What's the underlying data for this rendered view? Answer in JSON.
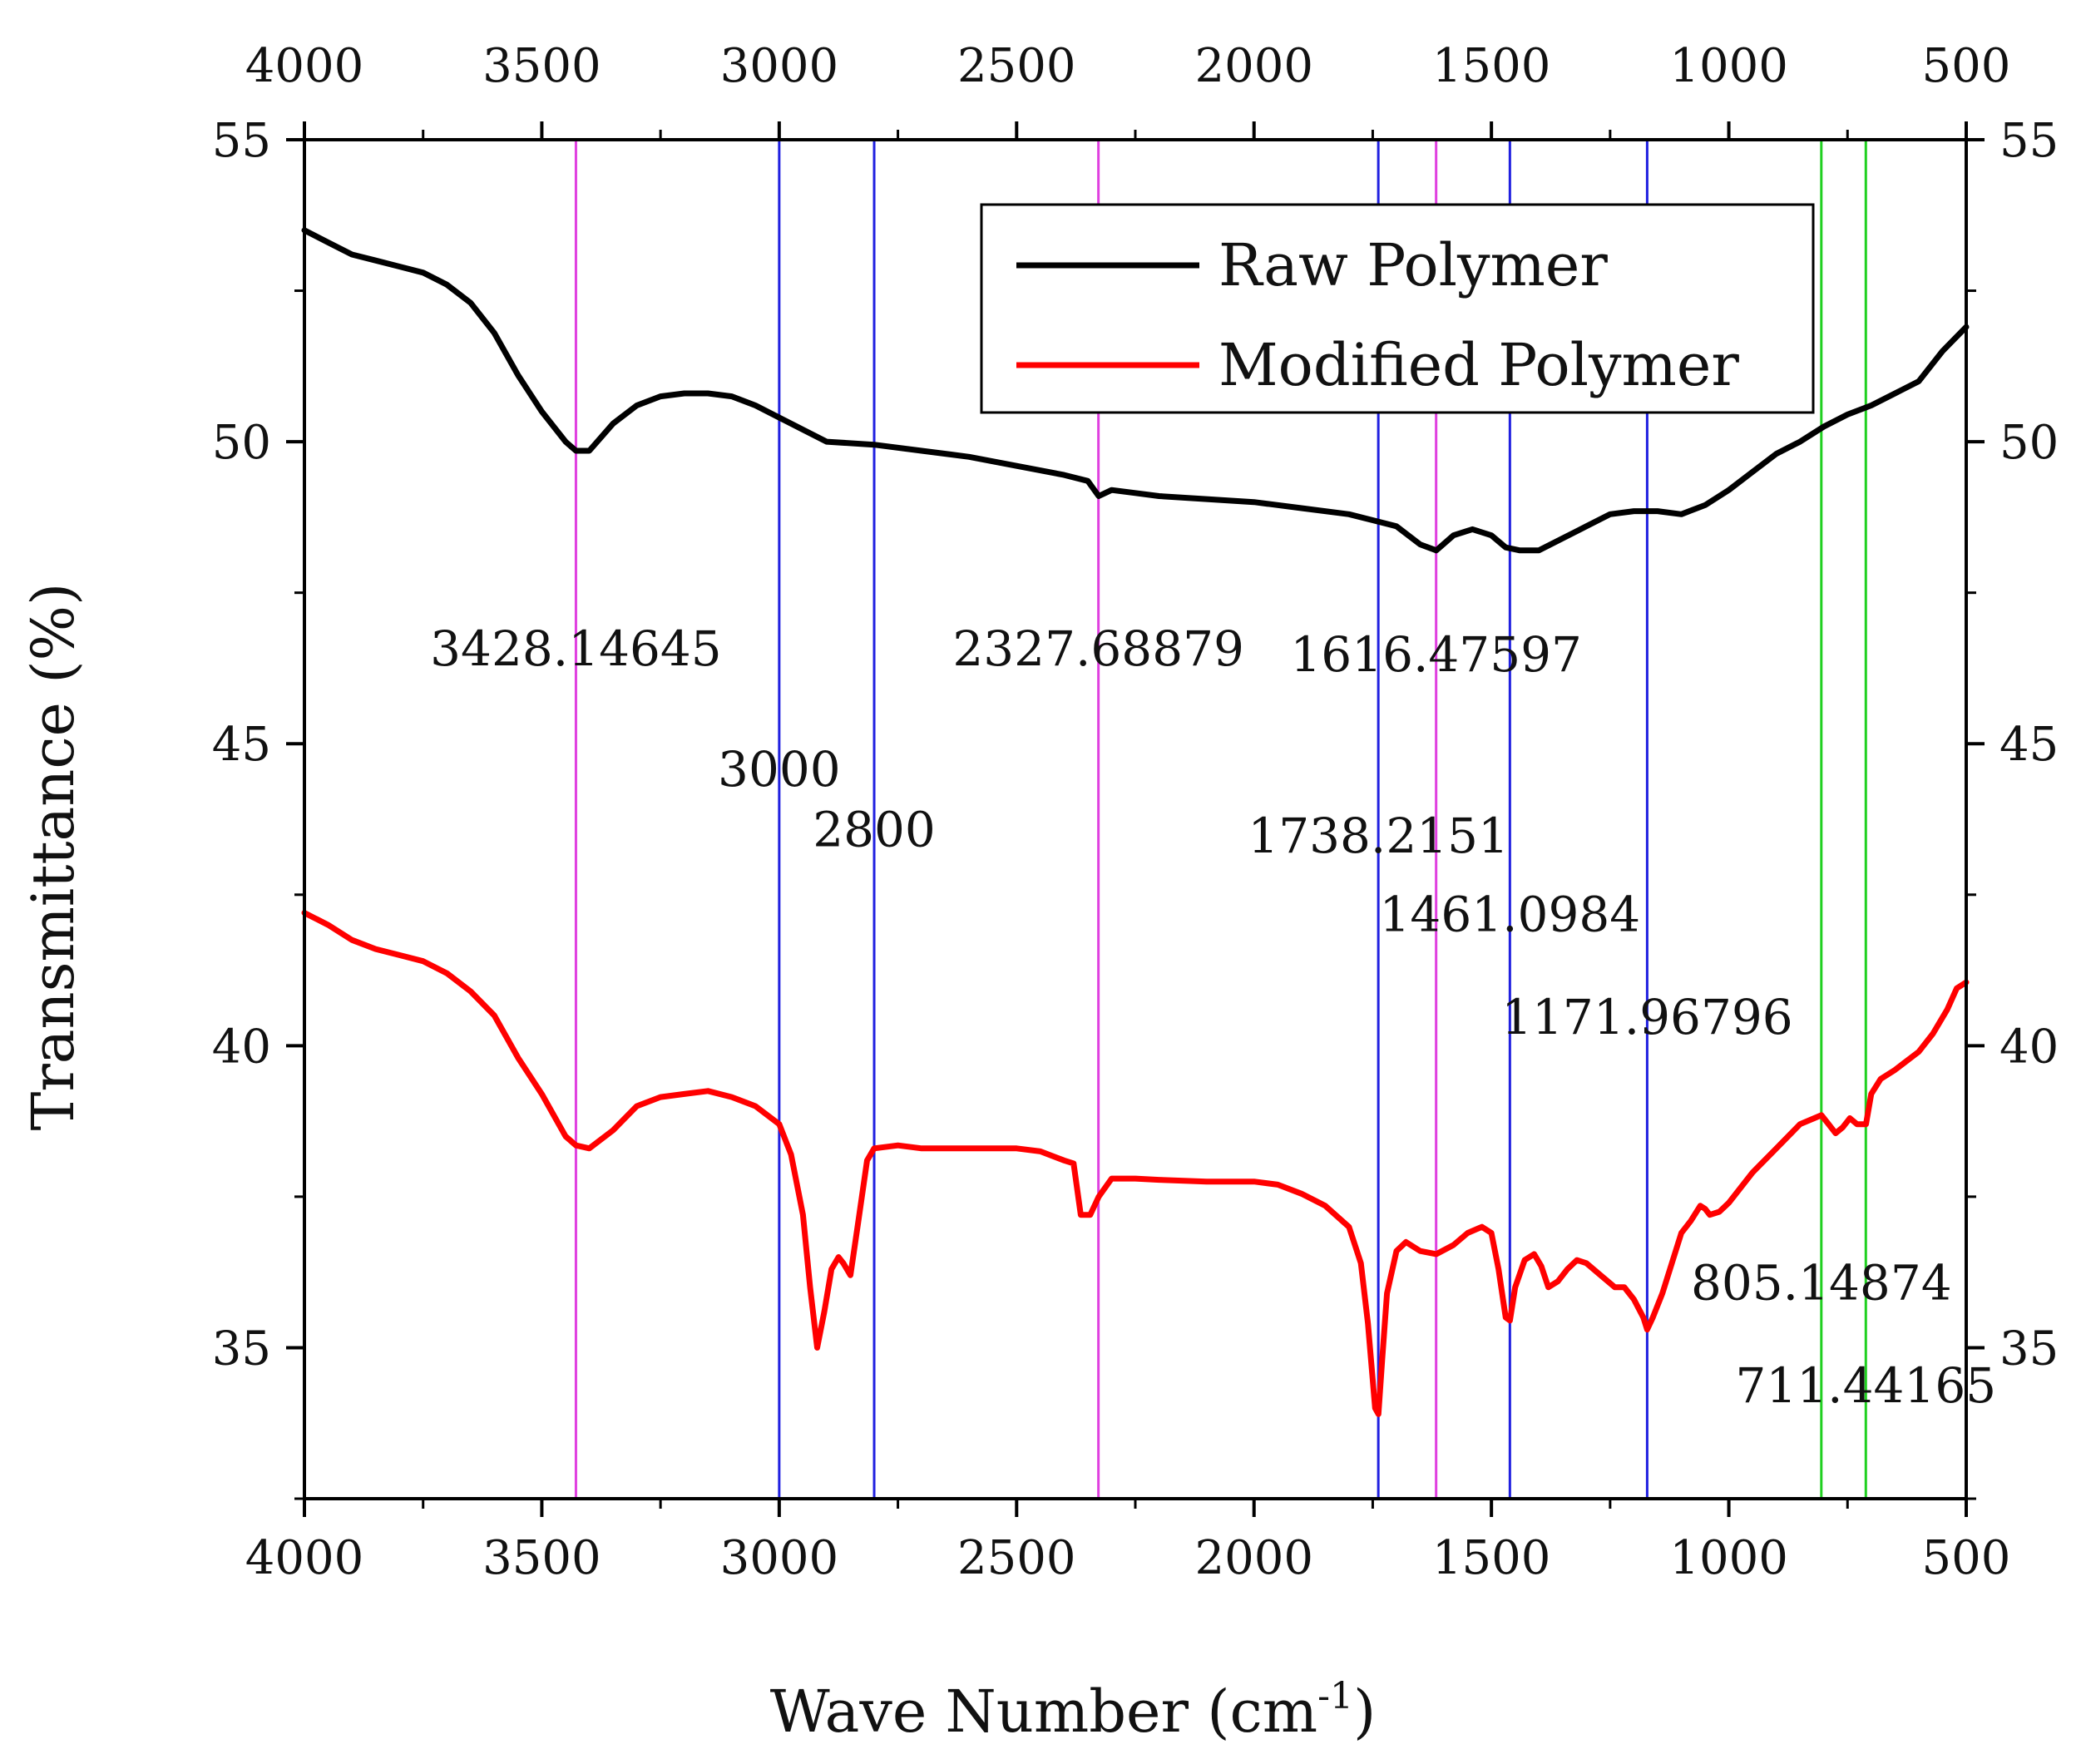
{
  "chart_data": {
    "type": "line",
    "xlabel_main": "Wave Number (cm",
    "xlabel_sup": "-1",
    "xlabel_close": ")",
    "ylabel": "Transmittance (%)",
    "xlim": [
      4000,
      500
    ],
    "ylim": [
      32.5,
      55
    ],
    "x_ticks": [
      4000,
      3500,
      3000,
      2500,
      2000,
      1500,
      1000,
      500
    ],
    "x_tick_labels": [
      "4000",
      "3500",
      "3000",
      "2500",
      "2000",
      "1500",
      "1000",
      "500"
    ],
    "y_ticks": [
      35,
      40,
      45,
      50,
      55
    ],
    "y_tick_labels": [
      "35",
      "40",
      "45",
      "50",
      "55"
    ],
    "series": [
      {
        "name": "Raw Polymer",
        "color": "#000000",
        "points": [
          [
            4000,
            53.5
          ],
          [
            3950,
            53.3
          ],
          [
            3900,
            53.1
          ],
          [
            3850,
            53.0
          ],
          [
            3800,
            52.9
          ],
          [
            3750,
            52.8
          ],
          [
            3700,
            52.6
          ],
          [
            3650,
            52.3
          ],
          [
            3600,
            51.8
          ],
          [
            3550,
            51.1
          ],
          [
            3500,
            50.5
          ],
          [
            3450,
            50.0
          ],
          [
            3428,
            49.85
          ],
          [
            3400,
            49.85
          ],
          [
            3350,
            50.3
          ],
          [
            3300,
            50.6
          ],
          [
            3250,
            50.75
          ],
          [
            3200,
            50.8
          ],
          [
            3150,
            50.8
          ],
          [
            3100,
            50.75
          ],
          [
            3050,
            50.6
          ],
          [
            3000,
            50.4
          ],
          [
            2950,
            50.2
          ],
          [
            2900,
            50.0
          ],
          [
            2800,
            49.95
          ],
          [
            2700,
            49.85
          ],
          [
            2600,
            49.75
          ],
          [
            2500,
            49.6
          ],
          [
            2400,
            49.45
          ],
          [
            2350,
            49.35
          ],
          [
            2327,
            49.1
          ],
          [
            2300,
            49.2
          ],
          [
            2250,
            49.15
          ],
          [
            2200,
            49.1
          ],
          [
            2100,
            49.05
          ],
          [
            2000,
            49.0
          ],
          [
            1900,
            48.9
          ],
          [
            1800,
            48.8
          ],
          [
            1750,
            48.7
          ],
          [
            1700,
            48.6
          ],
          [
            1650,
            48.3
          ],
          [
            1616,
            48.2
          ],
          [
            1580,
            48.45
          ],
          [
            1540,
            48.55
          ],
          [
            1500,
            48.45
          ],
          [
            1470,
            48.25
          ],
          [
            1440,
            48.2
          ],
          [
            1400,
            48.2
          ],
          [
            1350,
            48.4
          ],
          [
            1300,
            48.6
          ],
          [
            1250,
            48.8
          ],
          [
            1200,
            48.85
          ],
          [
            1150,
            48.85
          ],
          [
            1100,
            48.8
          ],
          [
            1050,
            48.95
          ],
          [
            1000,
            49.2
          ],
          [
            950,
            49.5
          ],
          [
            900,
            49.8
          ],
          [
            850,
            50.0
          ],
          [
            800,
            50.25
          ],
          [
            750,
            50.45
          ],
          [
            700,
            50.6
          ],
          [
            650,
            50.8
          ],
          [
            600,
            51.0
          ],
          [
            550,
            51.5
          ],
          [
            500,
            51.9
          ]
        ]
      },
      {
        "name": "Modified Polymer",
        "color": "#ff0000",
        "points": [
          [
            4000,
            42.2
          ],
          [
            3950,
            42.0
          ],
          [
            3900,
            41.75
          ],
          [
            3850,
            41.6
          ],
          [
            3800,
            41.5
          ],
          [
            3750,
            41.4
          ],
          [
            3700,
            41.2
          ],
          [
            3650,
            40.9
          ],
          [
            3600,
            40.5
          ],
          [
            3550,
            39.8
          ],
          [
            3500,
            39.2
          ],
          [
            3450,
            38.5
          ],
          [
            3428,
            38.35
          ],
          [
            3400,
            38.3
          ],
          [
            3350,
            38.6
          ],
          [
            3300,
            39.0
          ],
          [
            3250,
            39.15
          ],
          [
            3200,
            39.2
          ],
          [
            3150,
            39.25
          ],
          [
            3100,
            39.15
          ],
          [
            3050,
            39.0
          ],
          [
            3000,
            38.7
          ],
          [
            2975,
            38.2
          ],
          [
            2950,
            37.2
          ],
          [
            2935,
            36.0
          ],
          [
            2920,
            35.0
          ],
          [
            2905,
            35.6
          ],
          [
            2890,
            36.3
          ],
          [
            2875,
            36.5
          ],
          [
            2865,
            36.4
          ],
          [
            2850,
            36.2
          ],
          [
            2835,
            37.0
          ],
          [
            2815,
            38.1
          ],
          [
            2800,
            38.3
          ],
          [
            2750,
            38.35
          ],
          [
            2700,
            38.3
          ],
          [
            2600,
            38.3
          ],
          [
            2500,
            38.3
          ],
          [
            2450,
            38.25
          ],
          [
            2400,
            38.1
          ],
          [
            2380,
            38.05
          ],
          [
            2365,
            37.2
          ],
          [
            2345,
            37.2
          ],
          [
            2327,
            37.5
          ],
          [
            2300,
            37.8
          ],
          [
            2250,
            37.8
          ],
          [
            2200,
            37.78
          ],
          [
            2100,
            37.75
          ],
          [
            2000,
            37.75
          ],
          [
            1950,
            37.7
          ],
          [
            1900,
            37.55
          ],
          [
            1850,
            37.35
          ],
          [
            1800,
            37.0
          ],
          [
            1775,
            36.4
          ],
          [
            1760,
            35.4
          ],
          [
            1745,
            34.0
          ],
          [
            1738,
            33.9
          ],
          [
            1730,
            34.8
          ],
          [
            1720,
            35.9
          ],
          [
            1700,
            36.6
          ],
          [
            1680,
            36.75
          ],
          [
            1650,
            36.6
          ],
          [
            1616,
            36.55
          ],
          [
            1580,
            36.7
          ],
          [
            1550,
            36.9
          ],
          [
            1520,
            37.0
          ],
          [
            1500,
            36.9
          ],
          [
            1485,
            36.3
          ],
          [
            1470,
            35.5
          ],
          [
            1461,
            35.45
          ],
          [
            1450,
            36.0
          ],
          [
            1430,
            36.45
          ],
          [
            1410,
            36.55
          ],
          [
            1395,
            36.35
          ],
          [
            1380,
            36.0
          ],
          [
            1360,
            36.1
          ],
          [
            1340,
            36.3
          ],
          [
            1320,
            36.45
          ],
          [
            1300,
            36.4
          ],
          [
            1270,
            36.2
          ],
          [
            1240,
            36.0
          ],
          [
            1220,
            36.0
          ],
          [
            1200,
            35.8
          ],
          [
            1180,
            35.5
          ],
          [
            1172,
            35.3
          ],
          [
            1160,
            35.5
          ],
          [
            1140,
            35.9
          ],
          [
            1120,
            36.4
          ],
          [
            1100,
            36.9
          ],
          [
            1080,
            37.1
          ],
          [
            1060,
            37.35
          ],
          [
            1050,
            37.3
          ],
          [
            1040,
            37.2
          ],
          [
            1020,
            37.25
          ],
          [
            1000,
            37.4
          ],
          [
            950,
            37.9
          ],
          [
            900,
            38.3
          ],
          [
            850,
            38.7
          ],
          [
            820,
            38.8
          ],
          [
            805,
            38.85
          ],
          [
            790,
            38.7
          ],
          [
            775,
            38.55
          ],
          [
            760,
            38.65
          ],
          [
            745,
            38.8
          ],
          [
            730,
            38.7
          ],
          [
            711,
            38.7
          ],
          [
            700,
            39.2
          ],
          [
            680,
            39.45
          ],
          [
            650,
            39.6
          ],
          [
            600,
            39.9
          ],
          [
            570,
            40.2
          ],
          [
            540,
            40.6
          ],
          [
            520,
            40.95
          ],
          [
            500,
            41.05
          ]
        ]
      }
    ],
    "legend": {
      "position": "top-right",
      "entries": [
        "Raw Polymer",
        "Modified Polymer"
      ]
    },
    "reference_lines": [
      {
        "x": 3428.14645,
        "label": "3428.14645",
        "color": "#e040e0",
        "label_y": 46.3
      },
      {
        "x": 3000,
        "label": "3000",
        "color": "#2020e0",
        "label_y": 44.3
      },
      {
        "x": 2800,
        "label": "2800",
        "color": "#2020e0",
        "label_y": 43.3
      },
      {
        "x": 2327.68879,
        "label": "2327.68879",
        "color": "#e040e0",
        "label_y": 46.3
      },
      {
        "x": 1738.2151,
        "label": "1738.2151",
        "color": "#2020e0",
        "label_y": 43.2
      },
      {
        "x": 1616.47597,
        "label": "1616.47597",
        "color": "#e040e0",
        "label_y": 46.2
      },
      {
        "x": 1461.0984,
        "label": "1461.0984",
        "color": "#2020e0",
        "label_y": 41.9
      },
      {
        "x": 1171.96796,
        "label": "1171.96796",
        "color": "#2020e0",
        "label_y": 40.2
      },
      {
        "x": 805.14874,
        "label": "805.14874",
        "color": "#20d020",
        "label_y": 35.8
      },
      {
        "x": 711.44165,
        "label": "711.44165",
        "color": "#20d020",
        "label_y": 34.1
      }
    ]
  }
}
